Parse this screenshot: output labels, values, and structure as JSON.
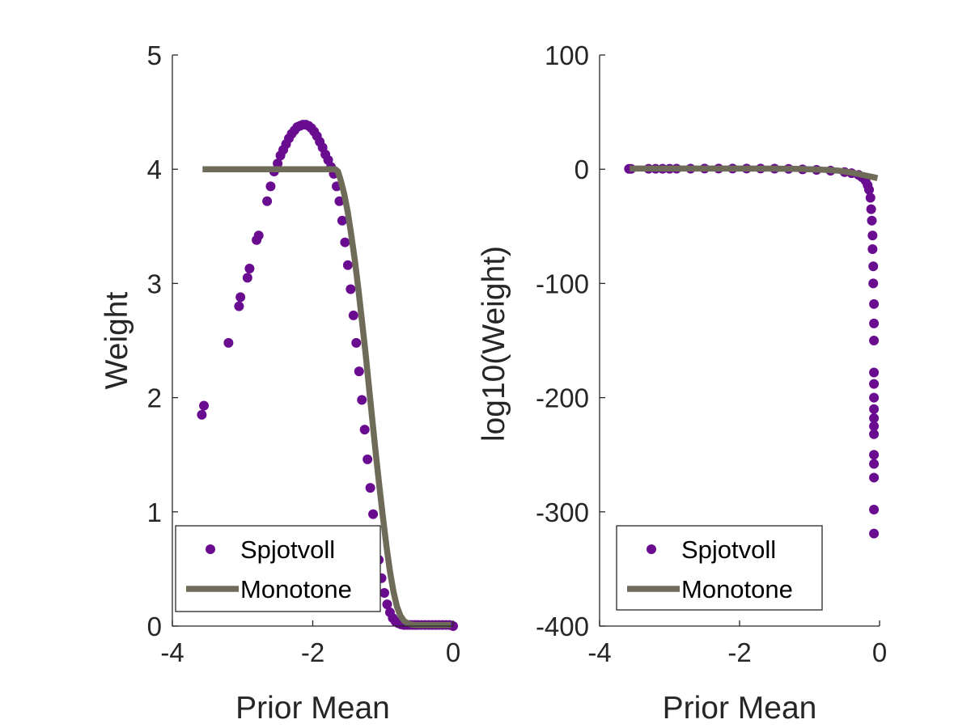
{
  "chart_data": [
    {
      "type": "scatter",
      "xlabel": "Prior Mean",
      "ylabel": "Weight",
      "xlim": [
        -4,
        0
      ],
      "ylim": [
        0,
        5
      ],
      "xticks": [
        -4,
        -2,
        0
      ],
      "yticks": [
        0,
        1,
        2,
        3,
        4,
        5
      ],
      "grid": false,
      "legend_position": "bottom-left",
      "series": [
        {
          "name": "Spjotvoll",
          "type": "scatter",
          "color": "#6a0c8f",
          "x": [
            -3.58,
            -3.55,
            -3.2,
            -3.05,
            -3.03,
            -2.93,
            -2.9,
            -2.8,
            -2.77,
            -2.65,
            -2.6,
            -2.55,
            -2.5,
            -2.46,
            -2.42,
            -2.38,
            -2.34,
            -2.3,
            -2.26,
            -2.22,
            -2.18,
            -2.14,
            -2.1,
            -2.06,
            -2.02,
            -1.98,
            -1.94,
            -1.9,
            -1.86,
            -1.82,
            -1.78,
            -1.74,
            -1.7,
            -1.66,
            -1.62,
            -1.58,
            -1.54,
            -1.5,
            -1.46,
            -1.42,
            -1.38,
            -1.34,
            -1.3,
            -1.26,
            -1.22,
            -1.18,
            -1.14,
            -1.1,
            -1.06,
            -1.02,
            -0.98,
            -0.94,
            -0.9,
            -0.86,
            -0.82,
            -0.78,
            -0.74,
            -0.7,
            -0.66,
            -0.62,
            -0.58,
            -0.54,
            -0.5,
            -0.45,
            -0.4,
            -0.35,
            -0.3,
            -0.25,
            -0.2,
            -0.15,
            -0.1,
            -0.05,
            0.0
          ],
          "y": [
            1.85,
            1.93,
            2.48,
            2.8,
            2.88,
            3.05,
            3.13,
            3.38,
            3.42,
            3.72,
            3.85,
            3.98,
            4.05,
            4.12,
            4.17,
            4.22,
            4.27,
            4.31,
            4.34,
            4.37,
            4.38,
            4.39,
            4.39,
            4.38,
            4.36,
            4.33,
            4.29,
            4.24,
            4.19,
            4.13,
            4.08,
            4.02,
            3.96,
            3.85,
            3.72,
            3.55,
            3.36,
            3.16,
            2.95,
            2.72,
            2.48,
            2.23,
            1.98,
            1.72,
            1.46,
            1.21,
            0.98,
            0.77,
            0.58,
            0.42,
            0.29,
            0.19,
            0.12,
            0.07,
            0.04,
            0.025,
            0.015,
            0.01,
            0.01,
            0.01,
            0.01,
            0.01,
            0.01,
            0.01,
            0.01,
            0.01,
            0.01,
            0.01,
            0.01,
            0.01,
            0.01,
            0.01,
            0.0
          ]
        },
        {
          "name": "Monotone",
          "type": "line",
          "color": "#6e6b58",
          "x": [
            -3.57,
            -3.3,
            -3.0,
            -2.7,
            -2.4,
            -2.1,
            -1.9,
            -1.75,
            -1.68,
            -1.64,
            -1.6,
            -1.55,
            -1.5,
            -1.45,
            -1.4,
            -1.35,
            -1.3,
            -1.25,
            -1.2,
            -1.15,
            -1.1,
            -1.05,
            -1.0,
            -0.95,
            -0.9,
            -0.85,
            -0.8,
            -0.75,
            -0.7,
            -0.65,
            -0.6,
            -0.55,
            -0.5,
            -0.45,
            -0.4,
            -0.35,
            -0.3,
            -0.2,
            -0.1,
            -0.03
          ],
          "y": [
            4.0,
            4.0,
            4.0,
            4.0,
            4.0,
            4.0,
            4.0,
            4.0,
            4.0,
            3.98,
            3.9,
            3.78,
            3.62,
            3.42,
            3.2,
            2.95,
            2.68,
            2.4,
            2.1,
            1.8,
            1.5,
            1.22,
            0.95,
            0.7,
            0.48,
            0.3,
            0.17,
            0.09,
            0.045,
            0.025,
            0.015,
            0.01,
            0.01,
            0.01,
            0.01,
            0.01,
            0.01,
            0.01,
            0.01,
            0.01
          ]
        }
      ]
    },
    {
      "type": "scatter",
      "xlabel": "Prior Mean",
      "ylabel": "log10(Weight)",
      "xlim": [
        -4,
        0
      ],
      "ylim": [
        -400,
        100
      ],
      "xticks": [
        -4,
        -2,
        0
      ],
      "yticks": [
        -400,
        -300,
        -200,
        -100,
        0,
        100
      ],
      "grid": false,
      "legend_position": "bottom-left",
      "series": [
        {
          "name": "Spjotvoll",
          "type": "scatter",
          "color": "#6a0c8f",
          "x": [
            -3.58,
            -3.55,
            -3.3,
            -3.2,
            -3.1,
            -3.0,
            -2.9,
            -2.7,
            -2.5,
            -2.3,
            -2.1,
            -1.9,
            -1.7,
            -1.5,
            -1.3,
            -1.1,
            -0.9,
            -0.7,
            -0.5,
            -0.4,
            -0.3,
            -0.25,
            -0.2,
            -0.17,
            -0.15,
            -0.13,
            -0.12,
            -0.11,
            -0.1,
            -0.1,
            -0.09,
            -0.09,
            -0.08,
            -0.08,
            -0.08,
            -0.08,
            -0.08,
            -0.08,
            -0.08,
            -0.08,
            -0.08,
            -0.08,
            -0.08,
            -0.08,
            -0.08,
            -0.08,
            -0.08
          ],
          "y": [
            0.3,
            0.3,
            0.4,
            0.4,
            0.4,
            0.4,
            0.5,
            0.5,
            0.6,
            0.6,
            0.6,
            0.6,
            0.6,
            0.5,
            0.3,
            -0.1,
            -0.6,
            -1.3,
            -2.5,
            -3.5,
            -5,
            -7,
            -10,
            -14,
            -18,
            -25,
            -35,
            -45,
            -58,
            -70,
            -85,
            -100,
            -118,
            -135,
            -150,
            -178,
            -188,
            -200,
            -210,
            -218,
            -225,
            -232,
            -250,
            -258,
            -270,
            -298,
            -319
          ]
        },
        {
          "name": "Monotone",
          "type": "line",
          "color": "#6e6b58",
          "x": [
            -3.57,
            -3.0,
            -2.5,
            -2.0,
            -1.5,
            -1.2,
            -1.0,
            -0.8,
            -0.6,
            -0.5,
            -0.4,
            -0.3,
            -0.2,
            -0.1,
            -0.03
          ],
          "y": [
            0.6,
            0.6,
            0.6,
            0.6,
            0.5,
            0.3,
            0.0,
            -0.5,
            -1.2,
            -2.0,
            -3.0,
            -4.2,
            -5.5,
            -6.8,
            -7.8
          ]
        }
      ]
    }
  ]
}
